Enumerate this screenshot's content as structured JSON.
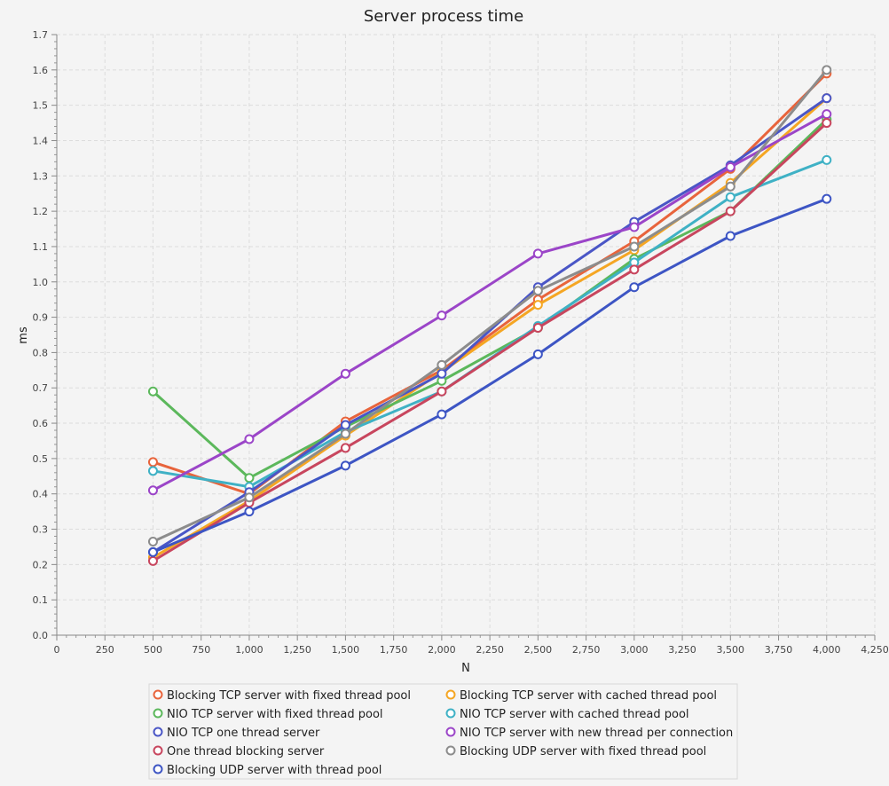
{
  "chart_data": {
    "type": "line",
    "title": "Server process time",
    "xlabel": "N",
    "ylabel": "ms",
    "xlim": [
      0,
      4250
    ],
    "ylim": [
      0,
      1.7
    ],
    "grid": true,
    "legend_position": "bottom",
    "x_ticks": [
      "0",
      "250",
      "500",
      "750",
      "1,000",
      "1,250",
      "1,500",
      "1,750",
      "2,000",
      "2,250",
      "2,500",
      "2,750",
      "3,000",
      "3,250",
      "3,500",
      "3,750",
      "4,000",
      "4,250"
    ],
    "y_ticks": [
      "0.0",
      "0.1",
      "0.2",
      "0.3",
      "0.4",
      "0.5",
      "0.6",
      "0.7",
      "0.8",
      "0.9",
      "1.0",
      "1.1",
      "1.2",
      "1.3",
      "1.4",
      "1.5",
      "1.6",
      "1.7"
    ],
    "x": [
      500,
      1000,
      1500,
      2000,
      2500,
      3000,
      3500,
      4000
    ],
    "series": [
      {
        "name": "Blocking TCP server with fixed thread pool",
        "color": "#e8643c",
        "values": [
          0.49,
          0.4,
          0.605,
          0.75,
          0.95,
          1.115,
          1.32,
          1.59
        ]
      },
      {
        "name": "Blocking TCP server with cached thread pool",
        "color": "#f5a623",
        "values": [
          0.22,
          0.38,
          0.565,
          0.745,
          0.935,
          1.09,
          1.28,
          1.52
        ]
      },
      {
        "name": "NIO TCP server with fixed thread pool",
        "color": "#5cb85c",
        "values": [
          0.69,
          0.445,
          0.59,
          0.72,
          0.87,
          1.065,
          1.2,
          1.46
        ]
      },
      {
        "name": "NIO TCP server with cached thread pool",
        "color": "#3fb1c5",
        "values": [
          0.465,
          0.42,
          0.575,
          0.69,
          0.875,
          1.055,
          1.24,
          1.345
        ]
      },
      {
        "name": "NIO TCP one thread server",
        "color": "#4a56c6",
        "values": [
          0.235,
          0.405,
          0.595,
          0.74,
          0.985,
          1.17,
          1.33,
          1.52
        ]
      },
      {
        "name": "NIO TCP server with new thread per connection",
        "color": "#9b45c8",
        "values": [
          0.41,
          0.555,
          0.74,
          0.905,
          1.08,
          1.155,
          1.325,
          1.475
        ]
      },
      {
        "name": "One thread blocking server",
        "color": "#c8465e",
        "values": [
          0.21,
          0.375,
          0.53,
          0.69,
          0.87,
          1.035,
          1.2,
          1.45
        ]
      },
      {
        "name": "Blocking UDP server with fixed thread pool",
        "color": "#8c8c8c",
        "values": [
          0.265,
          0.39,
          0.57,
          0.765,
          0.975,
          1.1,
          1.27,
          1.6
        ]
      },
      {
        "name": "Blocking UDP server with thread pool",
        "color": "#3d55c4",
        "values": [
          0.235,
          0.35,
          0.48,
          0.625,
          0.795,
          0.985,
          1.13,
          1.235
        ]
      }
    ]
  }
}
